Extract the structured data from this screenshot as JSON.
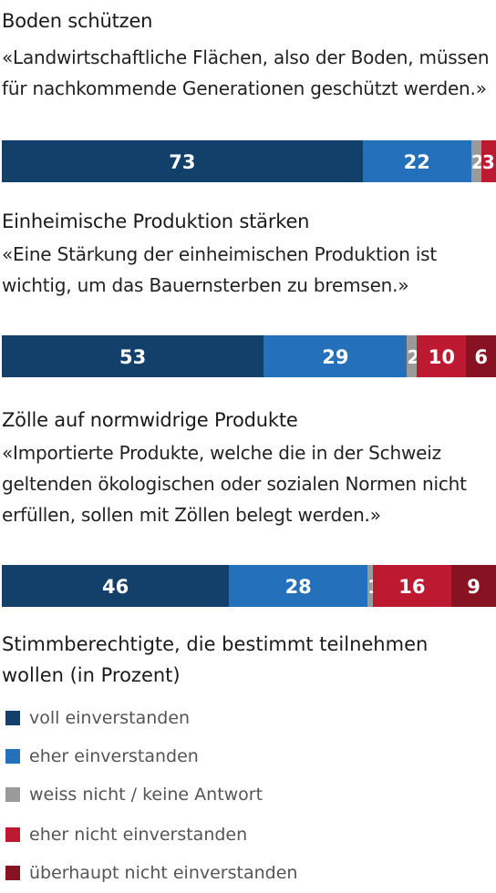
{
  "chart_data": {
    "type": "bar",
    "orientation": "horizontal",
    "stacked": true,
    "categories": [
      "Boden schützen",
      "Einheimische Produktion stärken",
      "Zölle auf normwidrige Produkte"
    ],
    "quotes": [
      "«Landwirtschaftliche Flächen, also der Boden, müssen für nachkommende Generationen geschützt werden.»",
      "«Eine Stärkung der einheimischen Produktion ist wichtig, um das Bauernsterben zu bremsen.»",
      "«Importierte Produkte, welche die in der Schweiz geltenden ökologischen oder sozialen Normen nicht erfüllen, sollen mit Zöllen belegt werden.»"
    ],
    "series": [
      {
        "name": "voll einverstanden",
        "color": "#12406b",
        "values": [
          73,
          53,
          46
        ]
      },
      {
        "name": "eher einverstanden",
        "color": "#2470bb",
        "values": [
          22,
          29,
          28
        ]
      },
      {
        "name": "weiss nicht / keine Antwort",
        "color": "#9a9a9a",
        "values": [
          2,
          2,
          1
        ]
      },
      {
        "name": "eher nicht einverstanden",
        "color": "#bd1930",
        "values": [
          3,
          10,
          16
        ]
      },
      {
        "name": "überhaupt nicht einverstanden",
        "color": "#861222",
        "values": [
          0,
          6,
          9
        ]
      }
    ],
    "legend_title": "Stimmberechtigte, die bestimmt teilnehmen wollen (in Prozent)",
    "xlim": [
      0,
      100
    ],
    "legend_position": "bottom"
  }
}
